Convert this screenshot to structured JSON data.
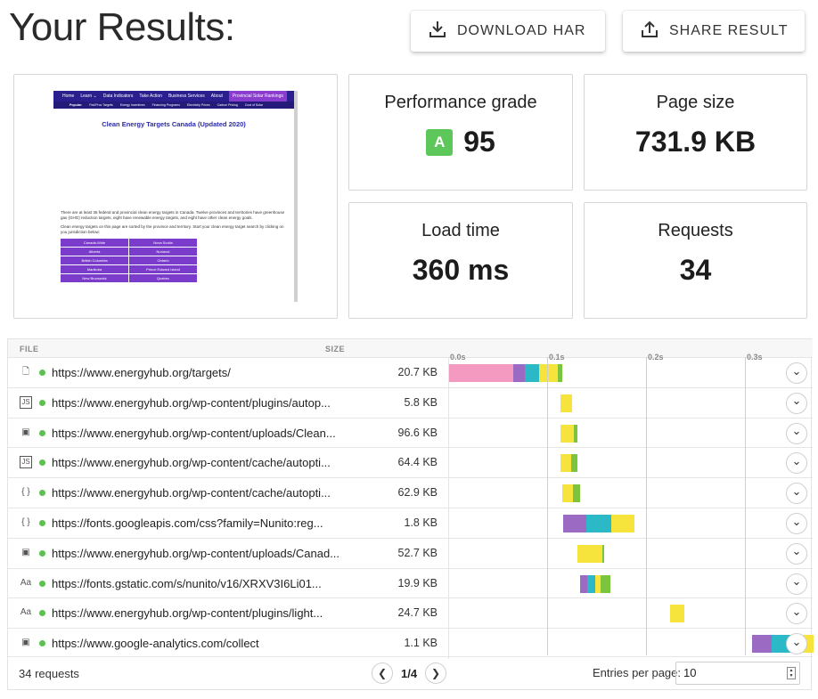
{
  "title": "Your Results:",
  "header": {
    "download_label": "DOWNLOAD HAR",
    "share_label": "SHARE RESULT"
  },
  "colors": {
    "grade_green": "#5ec75a",
    "status_ok": "#5cc150",
    "html": "#f49ac1",
    "dns": "#9b6bc4",
    "connect": "#2bb9c8",
    "wait": "#f6e33c",
    "receive": "#7cc43e"
  },
  "metrics": {
    "performance": {
      "label": "Performance grade",
      "grade": "A",
      "value": "95"
    },
    "page_size": {
      "label": "Page size",
      "value": "731.9 KB"
    },
    "load_time": {
      "label": "Load time",
      "value": "360 ms"
    },
    "requests": {
      "label": "Requests",
      "value": "34"
    }
  },
  "preview": {
    "nav": [
      "Home",
      "Learn ⌄",
      "Data Indicators",
      "Take Action",
      "Business Services",
      "About",
      "Provincial Solar Rankings"
    ],
    "subnav": [
      "Popular:",
      "Fed/Prov Targets",
      "Energy Incentives",
      "Financing Programs",
      "Electricity Prices",
      "Carbon Pricing",
      "Cost of Solar"
    ],
    "heading": "Clean Energy Targets Canada (Updated 2020)",
    "para1": "There are at least 36 federal and provincial clean energy targets in Canada. Twelve provinces and territories have greenhouse gas (GHG) reduction targets, eight have renewable energy targets, and eight have other clean energy goals.",
    "para2": "Clean energy targets on this page are sorted by the province and territory. Start your clean energy target search by clicking on you jurisdiction below:",
    "grid": [
      "Canada-Wide",
      "Nova Scotia",
      "Alberta",
      "Nunavut",
      "British Columbia",
      "Ontario",
      "Manitoba",
      "Prince Edward Island",
      "New Brunswick",
      "Quebec"
    ]
  },
  "table": {
    "col_file": "FILE",
    "col_size": "SIZE",
    "ticks": [
      "0.0s",
      "0.1s",
      "0.2s",
      "0.3s"
    ],
    "rows": [
      {
        "icon": "page-icon",
        "url": "https://www.energyhub.org/targets/",
        "size": "20.7 KB",
        "segments": [
          {
            "start_s": 0.0,
            "end_s": 0.065,
            "phase": "html"
          },
          {
            "start_s": 0.065,
            "end_s": 0.077,
            "phase": "dns"
          },
          {
            "start_s": 0.077,
            "end_s": 0.091,
            "phase": "connect"
          },
          {
            "start_s": 0.091,
            "end_s": 0.11,
            "phase": "wait"
          },
          {
            "start_s": 0.11,
            "end_s": 0.114,
            "phase": "receive"
          }
        ]
      },
      {
        "icon": "js-icon",
        "url": "https://www.energyhub.org/wp-content/plugins/autop...",
        "size": "5.8 KB",
        "segments": [
          {
            "start_s": 0.113,
            "end_s": 0.124,
            "phase": "wait"
          }
        ]
      },
      {
        "icon": "image-icon",
        "url": "https://www.energyhub.org/wp-content/uploads/Clean...",
        "size": "96.6 KB",
        "segments": [
          {
            "start_s": 0.113,
            "end_s": 0.126,
            "phase": "wait"
          },
          {
            "start_s": 0.126,
            "end_s": 0.13,
            "phase": "receive"
          }
        ]
      },
      {
        "icon": "js-icon",
        "url": "https://www.energyhub.org/wp-content/cache/autopti...",
        "size": "64.4 KB",
        "segments": [
          {
            "start_s": 0.113,
            "end_s": 0.123,
            "phase": "wait"
          },
          {
            "start_s": 0.123,
            "end_s": 0.13,
            "phase": "receive"
          }
        ]
      },
      {
        "icon": "css-icon",
        "url": "https://www.energyhub.org/wp-content/cache/autopti...",
        "size": "62.9 KB",
        "segments": [
          {
            "start_s": 0.114,
            "end_s": 0.125,
            "phase": "wait"
          },
          {
            "start_s": 0.125,
            "end_s": 0.132,
            "phase": "receive"
          }
        ]
      },
      {
        "icon": "css-icon",
        "url": "https://fonts.googleapis.com/css?family=Nunito:reg...",
        "size": "1.8 KB",
        "segments": [
          {
            "start_s": 0.115,
            "end_s": 0.139,
            "phase": "dns"
          },
          {
            "start_s": 0.139,
            "end_s": 0.164,
            "phase": "connect"
          },
          {
            "start_s": 0.164,
            "end_s": 0.187,
            "phase": "wait"
          }
        ]
      },
      {
        "icon": "image-icon",
        "url": "https://www.energyhub.org/wp-content/uploads/Canad...",
        "size": "52.7 KB",
        "segments": [
          {
            "start_s": 0.13,
            "end_s": 0.155,
            "phase": "wait"
          },
          {
            "start_s": 0.155,
            "end_s": 0.157,
            "phase": "receive"
          }
        ]
      },
      {
        "icon": "font-icon",
        "url": "https://fonts.gstatic.com/s/nunito/v16/XRXV3I6Li01...",
        "size": "19.9 KB",
        "segments": [
          {
            "start_s": 0.132,
            "end_s": 0.14,
            "phase": "dns"
          },
          {
            "start_s": 0.14,
            "end_s": 0.148,
            "phase": "connect"
          },
          {
            "start_s": 0.148,
            "end_s": 0.153,
            "phase": "wait"
          },
          {
            "start_s": 0.153,
            "end_s": 0.163,
            "phase": "receive"
          }
        ]
      },
      {
        "icon": "font-icon",
        "url": "https://www.energyhub.org/wp-content/plugins/light...",
        "size": "24.7 KB",
        "segments": [
          {
            "start_s": 0.223,
            "end_s": 0.238,
            "phase": "wait"
          }
        ]
      },
      {
        "icon": "image-icon",
        "url": "https://www.google-analytics.com/collect",
        "size": "1.1 KB",
        "segments": [
          {
            "start_s": 0.306,
            "end_s": 0.326,
            "phase": "dns"
          },
          {
            "start_s": 0.326,
            "end_s": 0.345,
            "phase": "connect"
          },
          {
            "start_s": 0.345,
            "end_s": 0.37,
            "phase": "wait"
          }
        ]
      }
    ],
    "request_count": "34 requests",
    "page_label": "1/4",
    "entries_label": "Entries per page:",
    "entries_value": "10"
  }
}
